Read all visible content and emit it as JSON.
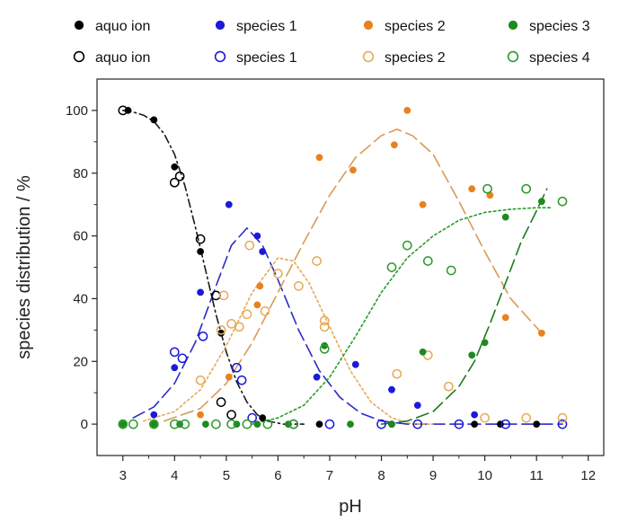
{
  "chart_data": {
    "type": "scatter",
    "xlabel": "pH",
    "ylabel": "species distribution / %",
    "xlim": [
      2.5,
      12.3
    ],
    "ylim": [
      -10,
      110
    ],
    "xticks": [
      "3",
      "4",
      "5",
      "6",
      "7",
      "8",
      "9",
      "10",
      "11",
      "12"
    ],
    "yticks": [
      "0",
      "20",
      "40",
      "60",
      "80",
      "100"
    ],
    "legend_position": "top",
    "series": [
      {
        "name": "aquo ion",
        "marker": "filled",
        "color": "#000000",
        "points": [
          [
            3.1,
            100
          ],
          [
            3.6,
            97
          ],
          [
            4.0,
            82
          ],
          [
            4.5,
            55
          ],
          [
            4.9,
            29
          ],
          [
            5.7,
            2
          ],
          [
            6.8,
            0
          ],
          [
            8.2,
            0
          ],
          [
            9.8,
            0
          ],
          [
            10.3,
            0
          ],
          [
            11.0,
            0
          ]
        ]
      },
      {
        "name": "aquo ion",
        "marker": "open",
        "color": "#000000",
        "points": [
          [
            3.0,
            100
          ],
          [
            4.0,
            77
          ],
          [
            4.1,
            79
          ],
          [
            4.5,
            59
          ],
          [
            4.8,
            41
          ],
          [
            4.9,
            7
          ],
          [
            5.1,
            3
          ]
        ]
      },
      {
        "name": "species 1",
        "marker": "filled",
        "color": "#1a1ad8",
        "points": [
          [
            3.6,
            3
          ],
          [
            4.0,
            18
          ],
          [
            4.5,
            42
          ],
          [
            5.05,
            70
          ],
          [
            5.6,
            60
          ],
          [
            5.7,
            55
          ],
          [
            6.75,
            15
          ],
          [
            7.5,
            19
          ],
          [
            8.2,
            11
          ],
          [
            8.7,
            6
          ],
          [
            9.8,
            3
          ]
        ]
      },
      {
        "name": "species 1",
        "marker": "open",
        "color": "#1a1ad8",
        "points": [
          [
            4.0,
            23
          ],
          [
            4.15,
            21
          ],
          [
            4.55,
            28
          ],
          [
            5.2,
            18
          ],
          [
            5.3,
            14
          ],
          [
            5.5,
            2
          ],
          [
            6.3,
            0
          ],
          [
            7.0,
            0
          ],
          [
            8.0,
            0
          ],
          [
            8.7,
            0
          ],
          [
            9.5,
            0
          ],
          [
            10.4,
            0
          ],
          [
            11.5,
            0
          ]
        ]
      },
      {
        "name": "species 2",
        "marker": "filled",
        "color": "#e8821e",
        "points": [
          [
            4.5,
            3
          ],
          [
            5.05,
            15
          ],
          [
            5.6,
            38
          ],
          [
            5.65,
            44
          ],
          [
            6.8,
            85
          ],
          [
            7.45,
            81
          ],
          [
            8.25,
            89
          ],
          [
            8.5,
            100
          ],
          [
            8.8,
            70
          ],
          [
            9.75,
            75
          ],
          [
            10.1,
            73
          ],
          [
            10.4,
            34
          ],
          [
            11.1,
            29
          ]
        ]
      },
      {
        "name": "species 2",
        "marker": "open",
        "color": "#e8a957",
        "points": [
          [
            4.5,
            14
          ],
          [
            4.9,
            30
          ],
          [
            4.95,
            41
          ],
          [
            5.1,
            32
          ],
          [
            5.25,
            31
          ],
          [
            5.4,
            35
          ],
          [
            5.45,
            57
          ],
          [
            5.75,
            36
          ],
          [
            6.0,
            48
          ],
          [
            6.4,
            44
          ],
          [
            6.75,
            52
          ],
          [
            6.9,
            33
          ],
          [
            6.9,
            31
          ],
          [
            8.3,
            16
          ],
          [
            8.9,
            22
          ],
          [
            9.3,
            12
          ],
          [
            10.0,
            2
          ],
          [
            10.8,
            2
          ],
          [
            11.5,
            2
          ]
        ]
      },
      {
        "name": "species 3",
        "marker": "filled",
        "color": "#1e8a1e",
        "points": [
          [
            3.0,
            0
          ],
          [
            3.6,
            0
          ],
          [
            4.1,
            0
          ],
          [
            4.6,
            0
          ],
          [
            5.2,
            0
          ],
          [
            5.6,
            0
          ],
          [
            6.2,
            0
          ],
          [
            6.9,
            25
          ],
          [
            7.4,
            0
          ],
          [
            8.2,
            0
          ],
          [
            8.8,
            23
          ],
          [
            9.75,
            22
          ],
          [
            10.0,
            26
          ],
          [
            10.4,
            66
          ],
          [
            11.1,
            71
          ]
        ]
      },
      {
        "name": "species 4",
        "marker": "open",
        "color": "#2a9a2a",
        "points": [
          [
            3.0,
            0
          ],
          [
            3.2,
            0
          ],
          [
            3.6,
            0
          ],
          [
            4.0,
            0
          ],
          [
            4.2,
            0
          ],
          [
            4.8,
            0
          ],
          [
            5.1,
            0
          ],
          [
            5.4,
            0
          ],
          [
            5.8,
            0
          ],
          [
            6.3,
            0
          ],
          [
            6.9,
            24
          ],
          [
            8.2,
            50
          ],
          [
            8.5,
            57
          ],
          [
            8.9,
            52
          ],
          [
            9.35,
            49
          ],
          [
            10.05,
            75
          ],
          [
            10.8,
            75
          ],
          [
            11.5,
            71
          ]
        ]
      }
    ],
    "fits": [
      {
        "color": "#1a1a1a",
        "dash": "dashdot",
        "points": [
          [
            3.0,
            100
          ],
          [
            3.2,
            99.5
          ],
          [
            3.4,
            98.5
          ],
          [
            3.6,
            96.5
          ],
          [
            3.8,
            92.5
          ],
          [
            4.0,
            86
          ],
          [
            4.2,
            76
          ],
          [
            4.4,
            63
          ],
          [
            4.6,
            49
          ],
          [
            4.8,
            35
          ],
          [
            5.0,
            23
          ],
          [
            5.2,
            13.5
          ],
          [
            5.4,
            7
          ],
          [
            5.6,
            3
          ],
          [
            5.8,
            1
          ],
          [
            6.1,
            0
          ],
          [
            6.5,
            0
          ]
        ]
      },
      {
        "color": "#2b2bc8",
        "dash": "longdash",
        "points": [
          [
            3.2,
            2
          ],
          [
            3.6,
            5.5
          ],
          [
            4.0,
            13
          ],
          [
            4.4,
            26
          ],
          [
            4.8,
            44
          ],
          [
            5.1,
            57
          ],
          [
            5.4,
            62.5
          ],
          [
            5.7,
            57
          ],
          [
            6.0,
            46
          ],
          [
            6.4,
            30
          ],
          [
            6.8,
            17
          ],
          [
            7.2,
            8.5
          ],
          [
            7.6,
            3.5
          ],
          [
            8.0,
            1
          ],
          [
            8.5,
            0
          ],
          [
            11.5,
            0
          ]
        ]
      },
      {
        "color": "#e8a957",
        "dash": "dot",
        "points": [
          [
            3.4,
            1
          ],
          [
            4.0,
            4
          ],
          [
            4.5,
            11
          ],
          [
            5.0,
            25
          ],
          [
            5.5,
            42
          ],
          [
            6.0,
            53
          ],
          [
            6.3,
            52
          ],
          [
            6.6,
            45
          ],
          [
            7.0,
            31
          ],
          [
            7.4,
            17
          ],
          [
            7.8,
            7
          ],
          [
            8.2,
            2
          ],
          [
            8.6,
            0
          ],
          [
            9.0,
            0
          ]
        ]
      },
      {
        "color": "#d99a55",
        "dash": "longdash",
        "points": [
          [
            3.8,
            1
          ],
          [
            4.5,
            5
          ],
          [
            5.0,
            13
          ],
          [
            5.5,
            26
          ],
          [
            6.0,
            42
          ],
          [
            6.5,
            58
          ],
          [
            7.0,
            73
          ],
          [
            7.5,
            85
          ],
          [
            8.0,
            92
          ],
          [
            8.3,
            94
          ],
          [
            8.6,
            92
          ],
          [
            9.0,
            86
          ],
          [
            9.5,
            71
          ],
          [
            10.0,
            55
          ],
          [
            10.5,
            40
          ],
          [
            11.1,
            29
          ]
        ]
      },
      {
        "color": "#2a9a2a",
        "dash": "dot",
        "points": [
          [
            5.5,
            0
          ],
          [
            6.0,
            2
          ],
          [
            6.5,
            6
          ],
          [
            7.0,
            15
          ],
          [
            7.5,
            28
          ],
          [
            8.0,
            42
          ],
          [
            8.5,
            53
          ],
          [
            9.0,
            60
          ],
          [
            9.5,
            65
          ],
          [
            10.0,
            67.5
          ],
          [
            10.5,
            68.5
          ],
          [
            11.0,
            69
          ],
          [
            11.3,
            69
          ]
        ]
      },
      {
        "color": "#1e7a1e",
        "dash": "longdash",
        "points": [
          [
            8.0,
            0
          ],
          [
            8.5,
            1
          ],
          [
            9.0,
            4
          ],
          [
            9.5,
            12
          ],
          [
            9.8,
            20
          ],
          [
            10.1,
            32
          ],
          [
            10.4,
            45
          ],
          [
            10.7,
            58
          ],
          [
            11.0,
            68
          ],
          [
            11.2,
            75
          ]
        ]
      }
    ]
  }
}
